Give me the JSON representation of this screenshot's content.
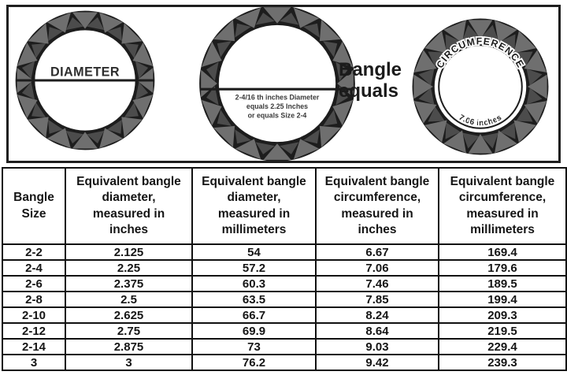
{
  "colors": {
    "ring_dark": "#1d1d1d",
    "facet_gray": "#6f6f6f",
    "facet_gray_dark": "#4c4c4c",
    "panel_border": "#1f1f1f",
    "table_border": "#111111",
    "text_dark": "#1b1b1b"
  },
  "top_panel": {
    "bangle_diameter": {
      "label": "DIAMETER"
    },
    "bangle_size_example": {
      "line1": "2-4/16 th inches Diameter",
      "line2": "equals 2.25 Inches",
      "line3": "or equals Size 2-4"
    },
    "equals_label": "Bangle equals",
    "bangle_circumference": {
      "arc_label": "CIRCUMFERENCE",
      "arc_value": "7.06 inches"
    }
  },
  "chart_data": {
    "type": "table",
    "title": "Bangle size conversion chart",
    "columns": [
      "Bangle Size",
      "Equivalent bangle diameter, measured in inches",
      "Equivalent bangle diameter, measured in millimeters",
      "Equivalent bangle circumference, measured in inches",
      "Equivalent bangle circumference, measured in millimeters"
    ],
    "rows": [
      [
        "2-2",
        "2.125",
        "54",
        "6.67",
        "169.4"
      ],
      [
        "2-4",
        "2.25",
        "57.2",
        "7.06",
        "179.6"
      ],
      [
        "2-6",
        "2.375",
        "60.3",
        "7.46",
        "189.5"
      ],
      [
        "2-8",
        "2.5",
        "63.5",
        "7.85",
        "199.4"
      ],
      [
        "2-10",
        "2.625",
        "66.7",
        "8.24",
        "209.3"
      ],
      [
        "2-12",
        "2.75",
        "69.9",
        "8.64",
        "219.5"
      ],
      [
        "2-14",
        "2.875",
        "73",
        "9.03",
        "229.4"
      ],
      [
        "3",
        "3",
        "76.2",
        "9.42",
        "239.3"
      ]
    ]
  }
}
